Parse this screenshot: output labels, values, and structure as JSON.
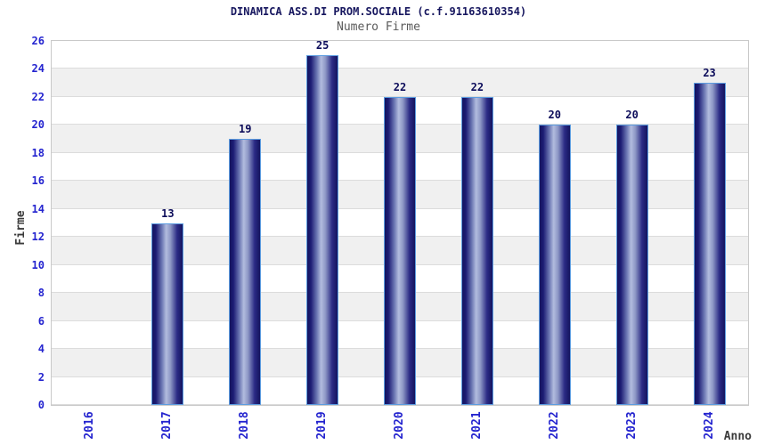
{
  "chart_data": {
    "type": "bar",
    "title": "DINAMICA ASS.DI PROM.SOCIALE (c.f.91163610354)",
    "subtitle": "Numero Firme",
    "xlabel": "Anno",
    "ylabel": "Firme",
    "categories": [
      "2016",
      "2017",
      "2018",
      "2019",
      "2020",
      "2021",
      "2022",
      "2023",
      "2024"
    ],
    "values": [
      null,
      13,
      19,
      25,
      22,
      22,
      20,
      20,
      23
    ],
    "bar_value_labels": [
      "",
      "13",
      "19",
      "25",
      "22",
      "22",
      "20",
      "20",
      "23"
    ],
    "ylim": [
      0,
      26
    ],
    "ytick_step": 2,
    "yticks": [
      0,
      2,
      4,
      6,
      8,
      10,
      12,
      14,
      16,
      18,
      20,
      22,
      24,
      26
    ],
    "legend": "none",
    "grid": "horizontal alternating bands, gridline every 2 units",
    "x_tick_rotation": -90
  },
  "colors": {
    "title_navy": "#17175f",
    "subtitle_gray": "#5a5a5a",
    "tick_blue": "#2424cf",
    "value_label_navy": "#0c0c5a",
    "axis_label_gray": "#3b3b3b",
    "band_white": "#ffffff",
    "band_gray": "#f0f0f0",
    "gridline": "#dcdcdc",
    "plot_border": "#c9c9c9",
    "bar_border": "#5c9ce0",
    "bar_edge_dark": "#14145f",
    "bar_mid_light": "#b2bcde"
  }
}
